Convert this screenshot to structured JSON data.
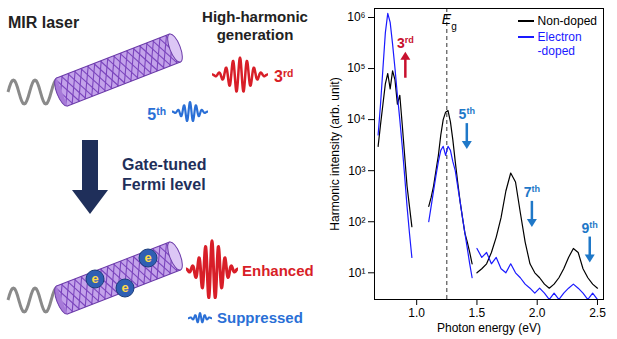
{
  "chart_data": {
    "type": "line",
    "xlabel": "Photon energy (eV)",
    "ylabel": "Harmonic intensity (arb. unit)",
    "log": "y",
    "grid": false,
    "legend": "top-right",
    "xlim": [
      0.65,
      2.55
    ],
    "xticks": [
      {
        "value": 1,
        "label": "1.0"
      },
      {
        "value": 1.5,
        "label": "1.5"
      },
      {
        "value": 2,
        "label": "2.0"
      },
      {
        "value": 2.5,
        "label": "2.5"
      }
    ],
    "ylim": [
      3,
      1500000
    ],
    "yticks": [
      {
        "value": 10,
        "label": "10¹"
      },
      {
        "value": 100,
        "label": "10²"
      },
      {
        "value": 1000,
        "label": "10³"
      },
      {
        "value": 10000,
        "label": "10⁴"
      },
      {
        "value": 100000,
        "label": "10⁵"
      },
      {
        "value": 1000000,
        "label": "10⁶"
      }
    ],
    "x": [
      0.68,
      0.7,
      0.72,
      0.74,
      0.76,
      0.78,
      0.8,
      0.82,
      0.84,
      0.86,
      0.88,
      0.9,
      0.92,
      0.94,
      0.96,
      1.03,
      1.1,
      1.12,
      1.14,
      1.16,
      1.18,
      1.2,
      1.22,
      1.24,
      1.26,
      1.28,
      1.3,
      1.32,
      1.34,
      1.36,
      1.38,
      1.4,
      1.42,
      1.44,
      1.46,
      1.47,
      1.5,
      1.54,
      1.58,
      1.62,
      1.66,
      1.7,
      1.74,
      1.78,
      1.82,
      1.86,
      1.9,
      1.94,
      1.98,
      2.02,
      2.06,
      2.1,
      2.14,
      2.18,
      2.22,
      2.26,
      2.3,
      2.34,
      2.38,
      2.42,
      2.46,
      2.5
    ],
    "series": [
      {
        "name": "Non-doped",
        "color": "#000000",
        "values": [
          3000,
          8000,
          20000,
          50000,
          80000,
          40000,
          90000,
          60000,
          20000,
          30000,
          8000,
          2000,
          500,
          200,
          80,
          null,
          200,
          300,
          500,
          1000,
          2000,
          5000,
          10000,
          14000,
          15000,
          9000,
          4000,
          1500,
          600,
          250,
          120,
          60,
          40,
          25,
          15,
          null,
          10,
          12,
          15,
          25,
          50,
          120,
          400,
          900,
          600,
          150,
          40,
          15,
          10,
          8,
          6,
          5,
          6,
          8,
          12,
          20,
          30,
          25,
          12,
          8,
          6,
          5
        ]
      },
      {
        "name": "Electron-doped",
        "color": "#1a1aff",
        "values": [
          5000,
          20000,
          100000,
          500000,
          1200000,
          800000,
          300000,
          100000,
          30000,
          10000,
          3000,
          800,
          200,
          60,
          20,
          null,
          100,
          200,
          400,
          800,
          1500,
          2500,
          3000,
          2000,
          3000,
          2500,
          1500,
          1000,
          500,
          250,
          120,
          60,
          30,
          15,
          8,
          null,
          30,
          20,
          25,
          15,
          20,
          12,
          10,
          15,
          10,
          8,
          6,
          5,
          4,
          5,
          4,
          3,
          4,
          3,
          4,
          5,
          6,
          5,
          4,
          3,
          4,
          3
        ]
      }
    ],
    "annotations": [
      {
        "text": "Eg",
        "x": 1.25,
        "line_style": "dashed"
      },
      {
        "text": "3rd",
        "x": 0.91,
        "y": 250000,
        "color": "#c8102e"
      },
      {
        "text": "5th",
        "x": 1.42,
        "y": 10000,
        "color": "#1f78c8"
      },
      {
        "text": "7th",
        "x": 1.96,
        "y": 300,
        "color": "#1f78c8"
      },
      {
        "text": "9th",
        "x": 2.44,
        "y": 60,
        "color": "#1f78c8"
      }
    ]
  },
  "diagram": {
    "laser_label": "MIR laser",
    "output_label": "High-harmonic generation",
    "top_harmonics": [
      "3rd",
      "5th"
    ],
    "arrow_label": "Gate-tuned Fermi level",
    "electrons": [
      "e",
      "e",
      "e"
    ],
    "enhanced": "Enhanced",
    "suppressed": "Suppressed"
  }
}
